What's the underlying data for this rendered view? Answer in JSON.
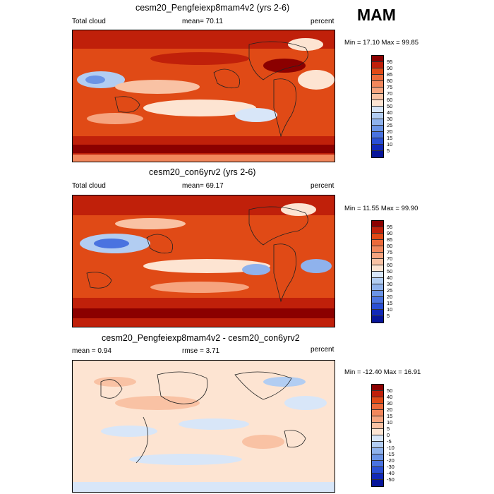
{
  "season": "MAM",
  "panels": [
    {
      "title": "cesm20_Pengfeiexp8mam4v2 (yrs 2-6)",
      "left_label": "Total cloud",
      "center_label": "mean=  70.11",
      "right_label": "percent",
      "minmax": "Min = 17.10 Max = 99.85",
      "field": "Total cloud cover (percent), cesm20_Pengfeiexp8mam4v2"
    },
    {
      "title": "cesm20_con6yrv2 (yrs 2-6)",
      "left_label": "Total cloud",
      "center_label": "mean=  69.17",
      "right_label": "percent",
      "minmax": "Min = 11.55 Max = 99.90",
      "field": "Total cloud cover (percent), cesm20_con6yrv2"
    },
    {
      "title": "cesm20_Pengfeiexp8mam4v2 - cesm20_con6yrv2",
      "left_label": "mean =   0.94",
      "center_label": "rmse =   3.71",
      "right_label": "percent",
      "minmax": "Min = -12.40 Max =  16.91",
      "field": "Difference in total cloud cover (percent)"
    }
  ],
  "colorbar_abs": {
    "labels": [
      "95",
      "90",
      "85",
      "80",
      "75",
      "70",
      "60",
      "50",
      "40",
      "30",
      "25",
      "20",
      "15",
      "10",
      "5"
    ],
    "colors": [
      "#8b0000",
      "#c0200a",
      "#e04a16",
      "#ec6a3a",
      "#f2875c",
      "#f6a47f",
      "#f9c2a4",
      "#fde4d2",
      "#d8e6f8",
      "#b2cdf2",
      "#8fb2ec",
      "#6b94e6",
      "#4a73e0",
      "#2a4fd4",
      "#1229b8",
      "#07159a"
    ]
  },
  "colorbar_diff": {
    "labels": [
      "50",
      "40",
      "30",
      "20",
      "15",
      "10",
      "5",
      "0",
      "-5",
      "-10",
      "-15",
      "-20",
      "-30",
      "-40",
      "-50"
    ],
    "colors": [
      "#8b0000",
      "#c0200a",
      "#e04a16",
      "#ec6a3a",
      "#f2875c",
      "#f6a47f",
      "#f9c2a4",
      "#fde4d2",
      "#d8e6f8",
      "#b2cdf2",
      "#8fb2ec",
      "#6b94e6",
      "#4a73e0",
      "#2a4fd4",
      "#1229b8",
      "#07159a"
    ]
  }
}
